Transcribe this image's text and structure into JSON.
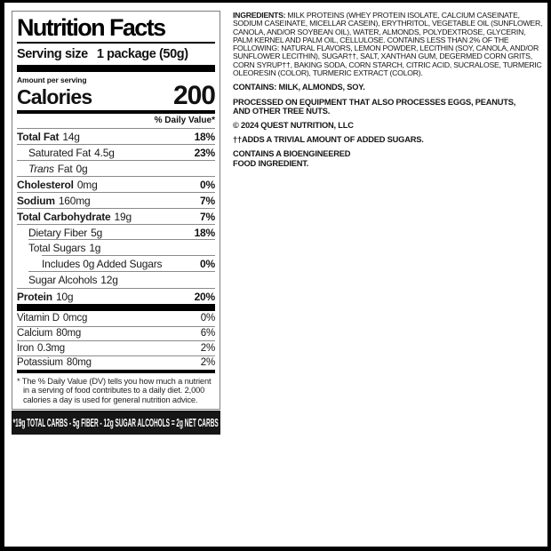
{
  "panel": {
    "title": "Nutrition Facts",
    "serving_size_label": "Serving size",
    "serving_size_value": "1 package (50g)",
    "amount_label": "Amount per serving",
    "calories_label": "Calories",
    "calories_value": "200",
    "daily_value_header": "% Daily Value*",
    "rows": [
      {
        "name": "Total Fat",
        "amount": "14g",
        "dv": "18%"
      },
      {
        "name": "Saturated Fat",
        "amount": "4.5g",
        "dv": "23%"
      },
      {
        "name_italic": "Trans",
        "name": "Fat",
        "amount": "0g",
        "dv": ""
      },
      {
        "name": "Cholesterol",
        "amount": "0mg",
        "dv": "0%"
      },
      {
        "name": "Sodium",
        "amount": "160mg",
        "dv": "7%"
      },
      {
        "name": "Total Carbohydrate",
        "amount": "19g",
        "dv": "7%"
      },
      {
        "name": "Dietary Fiber",
        "amount": "5g",
        "dv": "18%"
      },
      {
        "name": "Total Sugars",
        "amount": "1g",
        "dv": ""
      },
      {
        "name": "Includes 0g Added Sugars",
        "amount": "",
        "dv": "0%"
      },
      {
        "name": "Sugar Alcohols",
        "amount": "12g",
        "dv": ""
      },
      {
        "name": "Protein",
        "amount": "10g",
        "dv": "20%"
      }
    ],
    "micros": [
      {
        "name": "Vitamin D",
        "amount": "0mcg",
        "dv": "0%"
      },
      {
        "name": "Calcium",
        "amount": "80mg",
        "dv": "6%"
      },
      {
        "name": "Iron",
        "amount": "0.3mg",
        "dv": "2%"
      },
      {
        "name": "Potassium",
        "amount": "80mg",
        "dv": "2%"
      }
    ],
    "footnote": "* The % Daily Value (DV) tells you how much a nutrient in a serving of food contributes to a daily diet. 2,000 calories a day is used for general nutrition advice."
  },
  "net_carbs_banner": "*19g TOTAL CARBS - 5g FIBER - 12g SUGAR ALCOHOLS = 2g NET CARBS",
  "right_column": {
    "ingredients_label": "INGREDIENTS:",
    "ingredients_text": " MILK PROTEINS (WHEY PROTEIN ISOLATE, CALCIUM CASEINATE, SODIUM CASEINATE, MICELLAR CASEIN), ERYTHRITOL, VEGETABLE OIL (SUNFLOWER, CANOLA, AND/OR SOYBEAN OIL), WATER, ALMONDS, POLYDEXTROSE, GLYCERIN, PALM KERNEL AND PALM OIL, CELLULOSE. CONTAINS LESS THAN 2% OF THE FOLLOWING: NATURAL FLAVORS, LEMON POWDER, LECITHIN (SOY, CANOLA, AND/OR SUNFLOWER LECITHIN), SUGAR††, SALT, XANTHAN GUM, DEGERMED CORN GRITS, CORN SYRUP††, BAKING SODA, CORN STARCH, CITRIC ACID, SUCRALOSE, TURMERIC OLEORESIN (COLOR), TURMERIC EXTRACT (COLOR).",
    "contains": "CONTAINS: MILK, ALMONDS, SOY.",
    "processed": "PROCESSED ON EQUIPMENT THAT ALSO PROCESSES EGGS, PEANUTS,\nAND OTHER TREE NUTS.",
    "copyright": "© 2024 QUEST NUTRITION, LLC",
    "added_sugars_note": "††ADDS A TRIVIAL AMOUNT OF ADDED SUGARS.",
    "bioengineered": "CONTAINS A BIOENGINEERED\nFOOD INGREDIENT."
  },
  "colors": {
    "ink": "#000000",
    "banner_bg": "#161616",
    "banner_text": "#ffffff",
    "hairline": "#8a8a8a"
  }
}
